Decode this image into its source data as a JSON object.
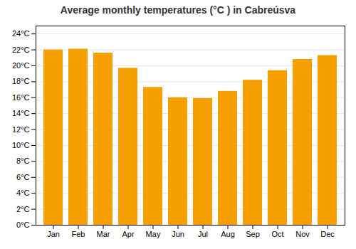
{
  "chart_data": {
    "type": "bar",
    "title": "Average monthly temperatures (°C ) in Cabreúsva",
    "categories": [
      "Jan",
      "Feb",
      "Mar",
      "Apr",
      "May",
      "Jun",
      "Jul",
      "Aug",
      "Sep",
      "Oct",
      "Nov",
      "Dec"
    ],
    "values": [
      22.0,
      22.1,
      21.6,
      19.7,
      17.3,
      16.0,
      15.9,
      16.8,
      18.2,
      19.4,
      20.8,
      21.3
    ],
    "color": "#F5A000",
    "ylim": [
      0,
      25
    ],
    "yticks": [
      {
        "value": 0,
        "label": "0°C"
      },
      {
        "value": 2,
        "label": "2°C"
      },
      {
        "value": 4,
        "label": "4°C"
      },
      {
        "value": 6,
        "label": "6°C"
      },
      {
        "value": 8,
        "label": "8°C"
      },
      {
        "value": 10,
        "label": "10°C"
      },
      {
        "value": 12,
        "label": "12°C"
      },
      {
        "value": 14,
        "label": "14°C"
      },
      {
        "value": 16,
        "label": "16°C"
      },
      {
        "value": 18,
        "label": "18°C"
      },
      {
        "value": 20,
        "label": "20°C"
      },
      {
        "value": 22,
        "label": "22°C"
      },
      {
        "value": 24,
        "label": "24°C"
      }
    ],
    "grid": true
  }
}
